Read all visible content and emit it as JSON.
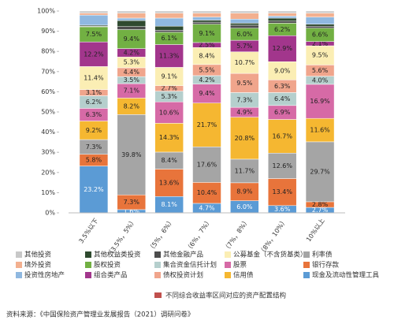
{
  "chart_data": {
    "type": "stacked_bar",
    "categories": [
      "3.5%以下",
      "（3.5%，5%）",
      "（5%，6%）",
      "（6%，7%）",
      "（7%，8%）",
      "（8%，10%）",
      "10%以上"
    ],
    "ylim": [
      0,
      100
    ],
    "yticks": [
      {
        "value": 0,
        "label": "0%"
      },
      {
        "value": 10,
        "label": "10%"
      },
      {
        "value": 20,
        "label": "20%"
      },
      {
        "value": 30,
        "label": "30%"
      },
      {
        "value": 40,
        "label": "40%"
      },
      {
        "value": 50,
        "label": "50%"
      },
      {
        "value": 60,
        "label": "60%"
      },
      {
        "value": 70,
        "label": "70%"
      },
      {
        "value": 80,
        "label": "80%"
      },
      {
        "value": 90,
        "label": "90%"
      },
      {
        "value": 100,
        "label": "100%"
      }
    ],
    "series": [
      {
        "name": "现金及流动性管理工具",
        "color": "#5b9bd5",
        "values": [
          23.2,
          1.6,
          8.1,
          4.7,
          6.0,
          3.6,
          2.7
        ],
        "value_labels": [
          "23.2%",
          "1.6%",
          "8.1%",
          "4.7%",
          "6.0%",
          "3.6%",
          "2.7%"
        ]
      },
      {
        "name": "银行存款",
        "color": "#e8743b",
        "values": [
          5.8,
          7.3,
          13.6,
          10.4,
          8.9,
          13.4,
          2.8
        ],
        "value_labels": [
          "5.8%",
          "7.3%",
          "13.6%",
          "10.4%",
          "8.9%",
          "13.4%",
          "2.8%"
        ]
      },
      {
        "name": "利率债",
        "color": "#a5a5a5",
        "values": [
          7.3,
          39.8,
          8.4,
          17.6,
          11.7,
          12.6,
          29.7
        ],
        "value_labels": [
          "7.3%",
          "39.8%",
          "8.4%",
          "17.6%",
          "11.7%",
          "12.6%",
          "29.7%"
        ]
      },
      {
        "name": "信用债",
        "color": "#f5b731",
        "values": [
          9.2,
          8.2,
          14.3,
          21.7,
          20.8,
          16.7,
          11.6
        ],
        "value_labels": [
          "9.2%",
          "8.2%",
          "14.3%",
          "21.7%",
          "20.8%",
          "16.7%",
          "11.6%"
        ]
      },
      {
        "name": "股票",
        "color": "#d66aa6",
        "values": [
          6.3,
          7.1,
          10.6,
          9.4,
          4.9,
          6.9,
          16.9
        ],
        "value_labels": [
          "6.3%",
          "7.1%",
          "10.6%",
          "9.4%",
          "4.9%",
          "6.9%",
          "16.9%"
        ]
      },
      {
        "name": "集合资金信托计划",
        "color": "#b5cfcd",
        "values": [
          6.2,
          3.5,
          5.3,
          4.2,
          7.3,
          6.4,
          4.0
        ],
        "value_labels": [
          "6.2%",
          "3.5%",
          "5.3%",
          "4.2%",
          "7.3%",
          "6.4%",
          "4.0%"
        ]
      },
      {
        "name": "债权投资计划",
        "color": "#f0a58c",
        "values": [
          3.1,
          4.4,
          2.7,
          5.5,
          9.5,
          6.3,
          5.6
        ],
        "value_labels": [
          "3.1%",
          "4.4%",
          "2.7%",
          "5.5%",
          "9.5%",
          "6.3%",
          "5.6%"
        ]
      },
      {
        "name": "公募基金（不含货基类）",
        "color": "#fbeeb4",
        "values": [
          11.4,
          5.3,
          9.1,
          8.4,
          10.7,
          9.0,
          9.5
        ],
        "value_labels": [
          "11.4%",
          "5.3%",
          "9.1%",
          "8.4%",
          "10.7%",
          "9.0%",
          "9.5%"
        ]
      },
      {
        "name": "组合类产品",
        "color": "#a2368c",
        "values": [
          12.2,
          4.2,
          11.3,
          2.5,
          5.7,
          12.9,
          2.1
        ],
        "value_labels": [
          "12.2%",
          "4.2%",
          "11.3%",
          "2.5%",
          "5.7%",
          "12.9%",
          "2.1%"
        ]
      },
      {
        "name": "股权投资",
        "color": "#72b043",
        "values": [
          7.5,
          9.4,
          6.1,
          9.1,
          6.0,
          6.2,
          6.6
        ],
        "value_labels": [
          "7.5%",
          "9.4%",
          "6.1%",
          "9.1%",
          "6.0%",
          "6.2%",
          "6.6%"
        ]
      },
      {
        "name": "其他金融产品",
        "color": "#4d4d4d",
        "values": [
          0.3,
          1.5,
          1.0,
          1.0,
          1.5,
          1.0,
          1.0
        ]
      },
      {
        "name": "其他权益类投资",
        "color": "#2f4a2f",
        "values": [
          0.5,
          3.0,
          2.0,
          1.0,
          1.0,
          1.5,
          1.0
        ]
      },
      {
        "name": "投资性房地产",
        "color": "#8fb8e0",
        "values": [
          5.0,
          1.2,
          4.0,
          1.5,
          2.0,
          1.0,
          3.5
        ]
      },
      {
        "name": "境外投资",
        "color": "#f3b08f",
        "values": [
          1.0,
          2.5,
          2.5,
          2.0,
          3.0,
          1.5,
          2.0
        ]
      },
      {
        "name": "其他投资",
        "color": "#c8c8c8",
        "values": [
          1.0,
          1.0,
          1.0,
          1.0,
          1.0,
          1.0,
          1.0
        ]
      }
    ],
    "caption": "不同综合收益率区间对应的资产配置结构",
    "source": "资料来源：《中国保险资产管理业发展报告（2021）调研问卷》"
  }
}
